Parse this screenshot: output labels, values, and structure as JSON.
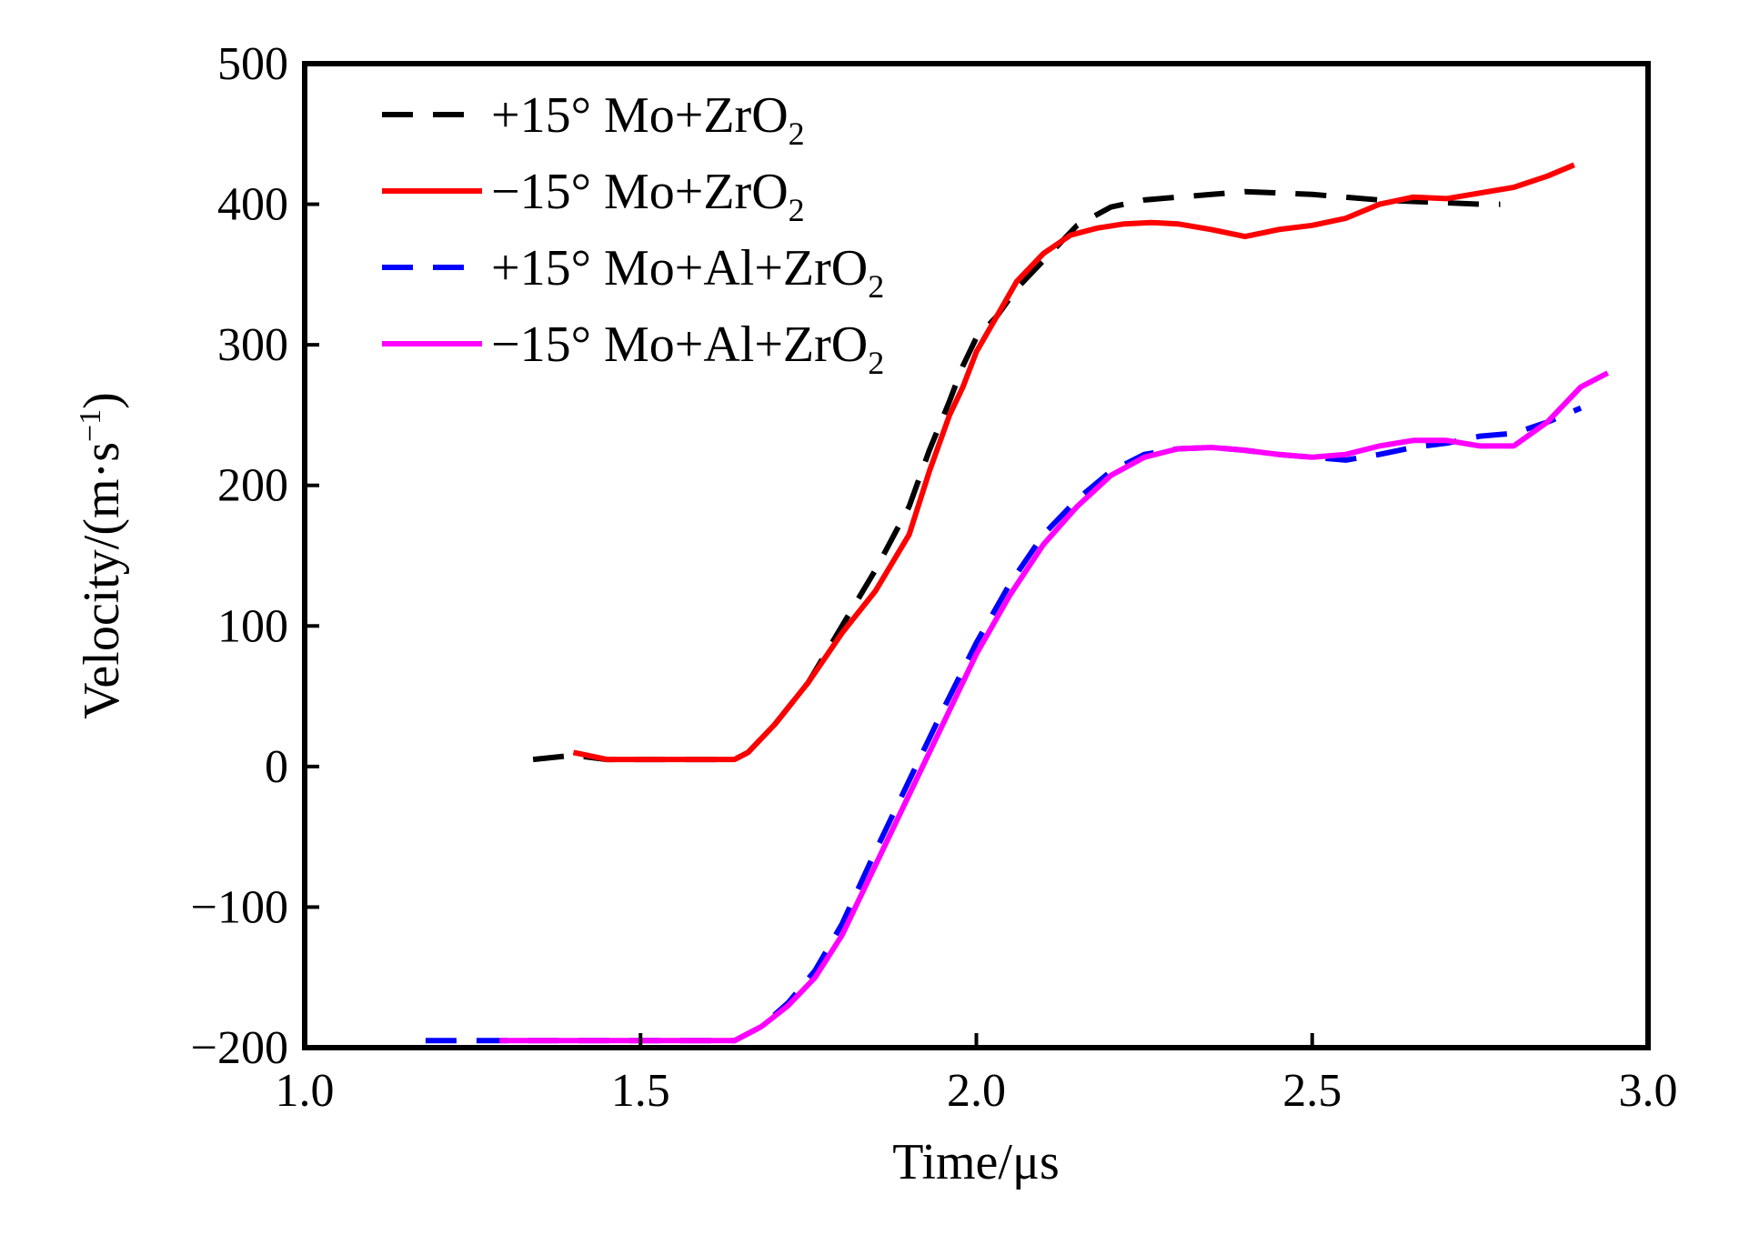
{
  "chart_data": {
    "type": "line",
    "title": "",
    "xlabel": "Time/μs",
    "ylabel": "Velocity/(m·s",
    "ylabel_sup": "−1",
    "ylabel_close": ")",
    "xlim": [
      1.0,
      3.0
    ],
    "ylim": [
      -200,
      500
    ],
    "x_ticks": [
      1.0,
      1.5,
      2.0,
      2.5,
      3.0
    ],
    "x_tick_labels": [
      "1.0",
      "1.5",
      "2.0",
      "2.5",
      "3.0"
    ],
    "y_ticks": [
      -200,
      -100,
      0,
      100,
      200,
      300,
      400,
      500
    ],
    "y_tick_labels": [
      "−200",
      "−100",
      "0",
      "100",
      "200",
      "300",
      "400",
      "500"
    ],
    "grid": false,
    "legend_position": "top-left",
    "series": [
      {
        "name": "+15° Mo+ZrO",
        "name_sub": "2",
        "color": "#000000",
        "style": "dashed",
        "x": [
          1.34,
          1.4,
          1.45,
          1.5,
          1.55,
          1.6,
          1.64,
          1.66,
          1.7,
          1.75,
          1.8,
          1.85,
          1.9,
          1.93,
          1.96,
          1.98,
          2.0,
          2.03,
          2.06,
          2.1,
          2.15,
          2.2,
          2.25,
          2.3,
          2.35,
          2.4,
          2.45,
          2.5,
          2.55,
          2.6,
          2.65,
          2.7,
          2.75,
          2.78
        ],
        "y": [
          5,
          8,
          5,
          5,
          5,
          5,
          5,
          10,
          30,
          60,
          100,
          140,
          185,
          225,
          260,
          285,
          305,
          320,
          340,
          360,
          385,
          398,
          403,
          405,
          407,
          409,
          408,
          407,
          405,
          403,
          402,
          401,
          400,
          400
        ]
      },
      {
        "name": "−15° Mo+ZrO",
        "name_sub": "2",
        "color": "#ff0000",
        "style": "solid",
        "x": [
          1.4,
          1.45,
          1.5,
          1.55,
          1.6,
          1.64,
          1.66,
          1.7,
          1.75,
          1.8,
          1.85,
          1.9,
          1.93,
          1.96,
          1.98,
          2.0,
          2.03,
          2.06,
          2.1,
          2.14,
          2.18,
          2.22,
          2.26,
          2.3,
          2.35,
          2.4,
          2.45,
          2.5,
          2.55,
          2.6,
          2.65,
          2.7,
          2.75,
          2.8,
          2.85,
          2.89
        ],
        "y": [
          10,
          5,
          5,
          5,
          5,
          5,
          10,
          30,
          60,
          95,
          125,
          165,
          210,
          250,
          270,
          295,
          320,
          345,
          365,
          378,
          383,
          386,
          387,
          386,
          382,
          377,
          382,
          385,
          390,
          400,
          405,
          404,
          408,
          412,
          420,
          428
        ]
      },
      {
        "name": "+15° Mo+Al+ZrO",
        "name_sub": "2",
        "color": "#0000ff",
        "style": "dashed",
        "x": [
          1.18,
          1.25,
          1.3,
          1.35,
          1.4,
          1.45,
          1.5,
          1.55,
          1.6,
          1.64,
          1.68,
          1.72,
          1.76,
          1.8,
          1.85,
          1.9,
          1.95,
          2.0,
          2.05,
          2.1,
          2.15,
          2.2,
          2.25,
          2.3,
          2.35,
          2.4,
          2.45,
          2.5,
          2.55,
          2.6,
          2.65,
          2.7,
          2.75,
          2.8,
          2.85,
          2.9
        ],
        "y": [
          -195,
          -195,
          -195,
          -195,
          -195,
          -195,
          -195,
          -195,
          -195,
          -195,
          -185,
          -168,
          -145,
          -112,
          -60,
          -10,
          40,
          88,
          130,
          165,
          190,
          210,
          222,
          226,
          227,
          225,
          222,
          220,
          218,
          222,
          227,
          230,
          235,
          237,
          245,
          255
        ]
      },
      {
        "name": "−15° Mo+Al+ZrO",
        "name_sub": "2",
        "color": "#ff00ff",
        "style": "solid",
        "x": [
          1.29,
          1.35,
          1.4,
          1.45,
          1.5,
          1.55,
          1.6,
          1.64,
          1.68,
          1.72,
          1.76,
          1.8,
          1.85,
          1.9,
          1.95,
          2.0,
          2.05,
          2.1,
          2.15,
          2.2,
          2.25,
          2.3,
          2.35,
          2.4,
          2.45,
          2.5,
          2.55,
          2.6,
          2.65,
          2.7,
          2.75,
          2.8,
          2.85,
          2.9,
          2.94
        ],
        "y": [
          -195,
          -195,
          -195,
          -195,
          -195,
          -195,
          -195,
          -195,
          -185,
          -170,
          -150,
          -120,
          -70,
          -20,
          30,
          80,
          122,
          158,
          185,
          207,
          220,
          226,
          227,
          225,
          222,
          220,
          222,
          228,
          232,
          232,
          228,
          228,
          245,
          270,
          280
        ]
      }
    ]
  }
}
